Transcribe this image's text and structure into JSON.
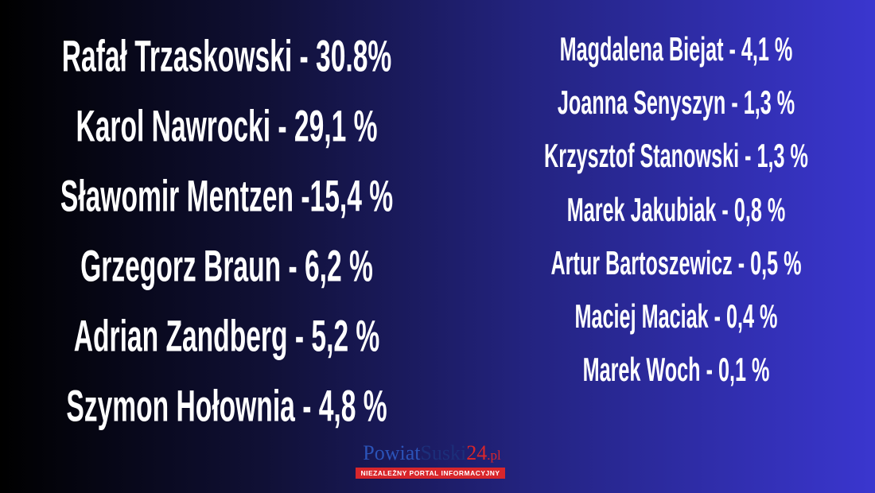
{
  "left_results": [
    "Rafał Trzaskowski - 30.8%",
    "Karol Nawrocki - 29,1 %",
    "Sławomir Mentzen -15,4 %",
    "Grzegorz Braun - 6,2 %",
    "Adrian Zandberg - 5,2 %",
    "Szymon Hołownia - 4,8 %"
  ],
  "right_results": [
    "Magdalena Biejat - 4,1 %",
    "Joanna Senyszyn - 1,3 %",
    "Krzysztof Stanowski - 1,3 %",
    "Marek Jakubiak - 0,8 %",
    "Artur Bartoszewicz - 0,5 %",
    "Maciej Maciak - 0,4 %",
    "Marek Woch - 0,1 %"
  ],
  "logo": {
    "parts": [
      "Powiat",
      "Suski",
      "24",
      ".pl"
    ],
    "tagline": "NIEZALEŻNY PORTAL INFORMACYJNY"
  }
}
